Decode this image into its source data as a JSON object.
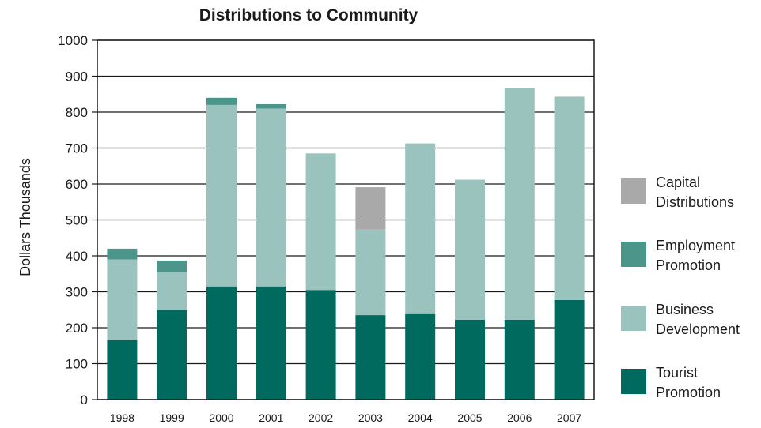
{
  "chart_data": {
    "type": "bar",
    "stacked": true,
    "title": "Distributions to Community",
    "xlabel": "",
    "ylabel": "Dollars Thousands",
    "ylim": [
      0,
      1000
    ],
    "yticks": [
      0,
      100,
      200,
      300,
      400,
      500,
      600,
      700,
      800,
      900,
      1000
    ],
    "grid": true,
    "legend_position": "right",
    "categories": [
      "1998",
      "1999",
      "2000",
      "2001",
      "2002",
      "2003",
      "2004",
      "2005",
      "2006",
      "2007"
    ],
    "series": [
      {
        "name": "Tourist Promotion",
        "color": "#006a5e",
        "values": [
          165,
          250,
          315,
          315,
          305,
          235,
          238,
          222,
          222,
          277
        ]
      },
      {
        "name": "Business Development",
        "color": "#9ac3be",
        "values": [
          225,
          105,
          505,
          495,
          380,
          238,
          475,
          390,
          645,
          566
        ]
      },
      {
        "name": "Employment Promotion",
        "color": "#4b958b",
        "values": [
          30,
          32,
          20,
          12,
          0,
          0,
          0,
          0,
          0,
          0
        ]
      },
      {
        "name": "Capital Distributions",
        "color": "#a9a9a9",
        "values": [
          0,
          0,
          0,
          0,
          0,
          118,
          0,
          0,
          0,
          0
        ]
      }
    ],
    "legend_order": [
      "Capital Distributions",
      "Employment Promotion",
      "Business Development",
      "Tourist Promotion"
    ]
  }
}
